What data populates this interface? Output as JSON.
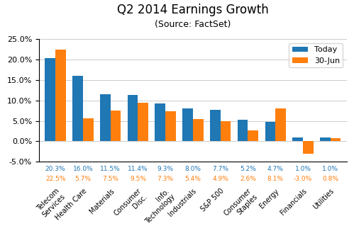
{
  "chart_data": {
    "type": "bar",
    "title": "Q2 2014 Earnings Growth",
    "subtitle": "(Source: FactSet)",
    "categories": [
      "Telecom\nServices",
      "Health Care",
      "Materials",
      "Consumer\nDisc.",
      "Info.\nTechnology",
      "Industrials",
      "S&P 500",
      "Consumer\nStaples",
      "Energy",
      "Financials",
      "Utilities"
    ],
    "series": [
      {
        "name": "Today",
        "values": [
          20.3,
          16.0,
          11.5,
          11.4,
          9.3,
          8.0,
          7.7,
          5.2,
          4.7,
          1.0,
          1.0
        ],
        "value_labels": [
          "20.3%",
          "16.0%",
          "11.5%",
          "11.4%",
          "9.3%",
          "8.0%",
          "7.7%",
          "5.2%",
          "4.7%",
          "1.0%",
          "1.0%"
        ]
      },
      {
        "name": "30-Jun",
        "values": [
          22.5,
          5.7,
          7.5,
          9.5,
          7.3,
          5.4,
          4.9,
          2.6,
          8.1,
          -3.0,
          0.8
        ],
        "value_labels": [
          "22.5%",
          "5.7%",
          "7.5%",
          "9.5%",
          "7.3%",
          "5.4%",
          "4.9%",
          "2.6%",
          "8.1%",
          "-3.0%",
          "0.8%"
        ]
      }
    ],
    "ylim": [
      -5.0,
      25.0
    ],
    "yticks": [
      {
        "value": -5.0,
        "label": "-5.0%"
      },
      {
        "value": 0.0,
        "label": "0.0%"
      },
      {
        "value": 5.0,
        "label": "5.0%"
      },
      {
        "value": 10.0,
        "label": "10.0%"
      },
      {
        "value": 15.0,
        "label": "15.0%"
      },
      {
        "value": 20.0,
        "label": "20.0%"
      },
      {
        "value": 25.0,
        "label": "25.0%"
      }
    ],
    "grid": true,
    "legend": "upper right",
    "data_labels": true
  }
}
